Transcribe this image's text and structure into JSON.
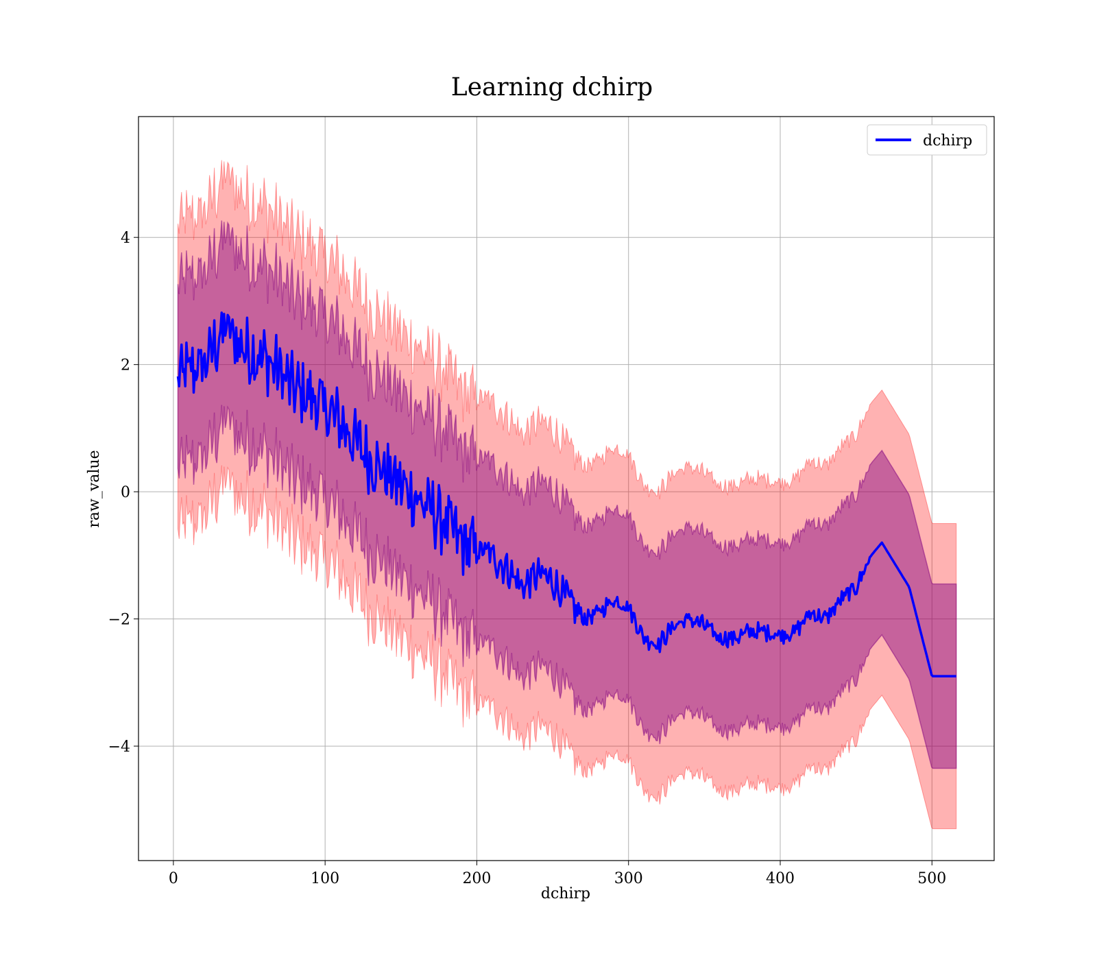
{
  "chart_data": {
    "type": "line",
    "title": "Learning dchirp",
    "xlabel": "dchirp",
    "ylabel": "raw_value",
    "xlim": [
      -23,
      541
    ],
    "ylim": [
      -5.8,
      5.9
    ],
    "xticks": [
      0,
      100,
      200,
      300,
      400,
      500
    ],
    "xtick_labels": [
      "0",
      "100",
      "200",
      "300",
      "400",
      "500"
    ],
    "yticks": [
      4,
      2,
      0,
      -2,
      -4
    ],
    "ytick_labels": [
      "4",
      "2",
      "0",
      "−2",
      "−4"
    ],
    "grid": true,
    "legend_position": "upper-right",
    "colors": {
      "line": "#0000ff",
      "outer_band": "#ff0000",
      "inner_band": "#800080"
    },
    "series": [
      {
        "name": "dchirp",
        "x": [
          3,
          10,
          20,
          30,
          35,
          40,
          50,
          60,
          70,
          80,
          90,
          100,
          110,
          120,
          130,
          140,
          150,
          160,
          170,
          180,
          190,
          200,
          210,
          220,
          230,
          240,
          250,
          260,
          270,
          280,
          290,
          300,
          310,
          320,
          330,
          340,
          350,
          360,
          370,
          380,
          390,
          400,
          410,
          420,
          430,
          440,
          450,
          460,
          467,
          485,
          500,
          516
        ],
        "y": [
          1.8,
          1.9,
          2.0,
          2.4,
          2.6,
          2.4,
          2.2,
          2.1,
          1.9,
          1.6,
          1.5,
          1.3,
          1.1,
          0.8,
          0.5,
          0.3,
          0.1,
          -0.1,
          -0.3,
          -0.5,
          -0.8,
          -0.9,
          -1.0,
          -1.2,
          -1.5,
          -1.3,
          -1.4,
          -1.7,
          -2.0,
          -1.9,
          -1.7,
          -1.8,
          -2.3,
          -2.4,
          -2.1,
          -2.0,
          -2.1,
          -2.3,
          -2.3,
          -2.2,
          -2.2,
          -2.25,
          -2.2,
          -1.9,
          -2.0,
          -1.7,
          -1.5,
          -1.0,
          -0.8,
          -1.5,
          -2.9,
          -2.9
        ],
        "inner_band_halfwidth": 1.45,
        "outer_band_halfwidth": 2.4
      }
    ]
  }
}
